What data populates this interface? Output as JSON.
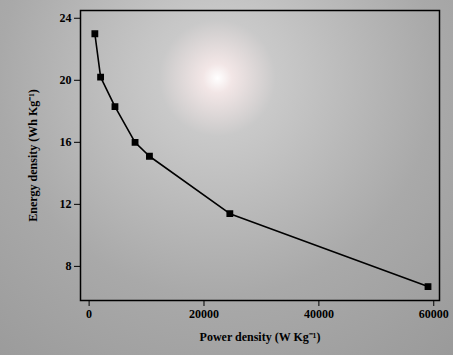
{
  "chart_data": {
    "type": "line",
    "x_label": "Power density (W Kg⁻¹)",
    "y_label": "Energy density (Wh Kg⁻¹)",
    "x": [
      1000,
      2000,
      4500,
      8000,
      10500,
      24500,
      59000
    ],
    "values": [
      23.0,
      20.2,
      18.3,
      16.0,
      15.1,
      11.4,
      6.7
    ],
    "color": "#000000",
    "marker": "square",
    "line_style": "solid",
    "xlim": [
      -1500,
      61000
    ],
    "xticks": [
      0,
      20000,
      40000,
      60000
    ],
    "ylim": [
      5.8,
      24.5
    ],
    "yticks": [
      8,
      12,
      16,
      20,
      24
    ],
    "grid": false
  }
}
